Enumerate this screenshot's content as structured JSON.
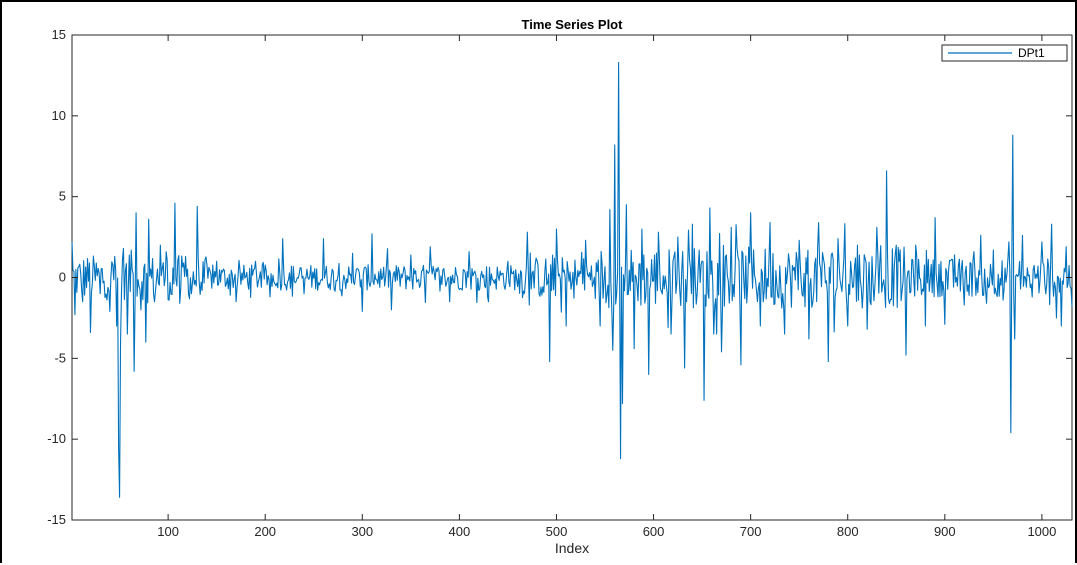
{
  "chart_data": {
    "type": "line",
    "title": "Time Series Plot",
    "xlabel": "Index",
    "ylabel": "",
    "xlim": [
      1,
      1031
    ],
    "ylim": [
      -15,
      15
    ],
    "x_ticks": [
      100,
      200,
      300,
      400,
      500,
      600,
      700,
      800,
      900,
      1000
    ],
    "y_ticks": [
      15,
      10,
      5,
      0,
      -5,
      -10,
      -15
    ],
    "x_tick_labels": [
      "100",
      "200",
      "300",
      "400",
      "500",
      "600",
      "700",
      "800",
      "900",
      "1000"
    ],
    "y_tick_labels": [
      "15",
      "10",
      "5",
      "0",
      "-5",
      "-10",
      "-15"
    ],
    "grid": false,
    "legend_position": "top-right",
    "series": [
      {
        "name": "DPt1",
        "color": "#0072BD",
        "n": 1031,
        "key_points": [
          [
            1,
            2.2
          ],
          [
            4,
            -2.3
          ],
          [
            12,
            -1.5
          ],
          [
            20,
            -3.4
          ],
          [
            30,
            -1.0
          ],
          [
            40,
            -2.1
          ],
          [
            45,
            1.3
          ],
          [
            47,
            -3.0
          ],
          [
            49,
            -10.5
          ],
          [
            50,
            -13.6
          ],
          [
            51,
            -4.0
          ],
          [
            54,
            1.8
          ],
          [
            58,
            -3.5
          ],
          [
            62,
            1.7
          ],
          [
            65,
            -5.8
          ],
          [
            67,
            4.0
          ],
          [
            72,
            -2.0
          ],
          [
            77,
            -4.0
          ],
          [
            80,
            3.6
          ],
          [
            86,
            -1.5
          ],
          [
            92,
            2.0
          ],
          [
            98,
            1.6
          ],
          [
            101,
            -1.4
          ],
          [
            107,
            4.6
          ],
          [
            112,
            -1.6
          ],
          [
            118,
            1.3
          ],
          [
            124,
            -1.0
          ],
          [
            130,
            4.4
          ],
          [
            135,
            -0.8
          ],
          [
            150,
            1.0
          ],
          [
            170,
            -1.5
          ],
          [
            190,
            1.0
          ],
          [
            205,
            -1.2
          ],
          [
            218,
            2.4
          ],
          [
            240,
            -1.0
          ],
          [
            260,
            2.4
          ],
          [
            290,
            1.5
          ],
          [
            300,
            -2.1
          ],
          [
            310,
            2.7
          ],
          [
            330,
            -2.0
          ],
          [
            350,
            1.4
          ],
          [
            370,
            1.9
          ],
          [
            390,
            -1.5
          ],
          [
            410,
            1.6
          ],
          [
            430,
            -1.5
          ],
          [
            450,
            1.0
          ],
          [
            470,
            2.8
          ],
          [
            482,
            -1.0
          ],
          [
            493,
            -5.2
          ],
          [
            500,
            3.0
          ],
          [
            510,
            -3.0
          ],
          [
            530,
            2.3
          ],
          [
            545,
            -3.0
          ],
          [
            555,
            4.2
          ],
          [
            558,
            -4.5
          ],
          [
            560,
            8.2
          ],
          [
            562,
            -1.0
          ],
          [
            564,
            13.3
          ],
          [
            566,
            -11.2
          ],
          [
            568,
            -7.8
          ],
          [
            572,
            4.5
          ],
          [
            580,
            -4.4
          ],
          [
            588,
            3.0
          ],
          [
            595,
            -6.0
          ],
          [
            605,
            2.8
          ],
          [
            615,
            -3.1
          ],
          [
            625,
            2.5
          ],
          [
            632,
            -5.6
          ],
          [
            640,
            3.3
          ],
          [
            652,
            -7.6
          ],
          [
            658,
            4.3
          ],
          [
            670,
            -4.6
          ],
          [
            680,
            3.1
          ],
          [
            690,
            -5.4
          ],
          [
            700,
            4.0
          ],
          [
            710,
            -3.0
          ],
          [
            720,
            3.4
          ],
          [
            735,
            -3.5
          ],
          [
            750,
            2.3
          ],
          [
            760,
            -3.8
          ],
          [
            770,
            3.4
          ],
          [
            780,
            -5.2
          ],
          [
            790,
            2.4
          ],
          [
            800,
            -3.0
          ],
          [
            810,
            2.0
          ],
          [
            820,
            -3.2
          ],
          [
            830,
            3.1
          ],
          [
            838,
            -0.7
          ],
          [
            840,
            6.6
          ],
          [
            842,
            -1.3
          ],
          [
            850,
            2.0
          ],
          [
            860,
            -4.8
          ],
          [
            870,
            2.0
          ],
          [
            880,
            -3.0
          ],
          [
            890,
            3.7
          ],
          [
            900,
            -2.9
          ],
          [
            910,
            1.4
          ],
          [
            920,
            -1.7
          ],
          [
            930,
            1.6
          ],
          [
            940,
            -1.1
          ],
          [
            950,
            1.7
          ],
          [
            960,
            -1.4
          ],
          [
            966,
            2.2
          ],
          [
            968,
            -9.6
          ],
          [
            970,
            8.8
          ],
          [
            972,
            -3.8
          ],
          [
            980,
            2.6
          ],
          [
            990,
            -1.2
          ],
          [
            1000,
            2.2
          ],
          [
            1010,
            3.3
          ],
          [
            1015,
            -2.5
          ],
          [
            1020,
            -3.0
          ],
          [
            1025,
            1.9
          ],
          [
            1031,
            -1.8
          ]
        ]
      }
    ]
  }
}
